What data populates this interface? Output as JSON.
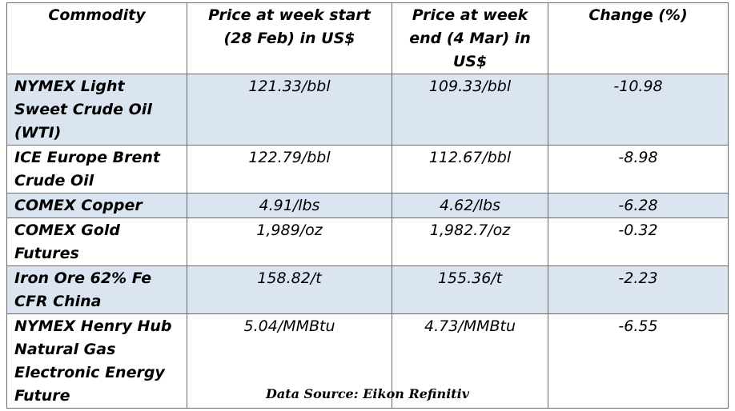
{
  "table": {
    "headers": [
      "Commodity",
      "Price at week start (28 Feb) in US$",
      "Price at week end (4 Mar) in US$",
      "Change (%)"
    ],
    "rows": [
      {
        "commodity": "NYMEX Light Sweet Crude Oil (WTI)",
        "start": "121.33/bbl",
        "end": "109.33/bbl",
        "change": "-10.98"
      },
      {
        "commodity": "ICE Europe Brent Crude Oil",
        "start": "122.79/bbl",
        "end": "112.67/bbl",
        "change": "-8.98"
      },
      {
        "commodity": "COMEX Copper",
        "start": "4.91/lbs",
        "end": "4.62/lbs",
        "change": "-6.28"
      },
      {
        "commodity": "COMEX Gold Futures",
        "start": "1,989/oz",
        "end": "1,982.7/oz",
        "change": "-0.32"
      },
      {
        "commodity": "Iron Ore 62% Fe CFR China",
        "start": "158.82/t",
        "end": "155.36/t",
        "change": "-2.23"
      },
      {
        "commodity": "NYMEX Henry Hub Natural Gas Electronic Energy Future",
        "start": "5.04/MMBtu",
        "end": "4.73/MMBtu",
        "change": "-6.55"
      }
    ]
  },
  "source_note": "Data Source: Eikon Refinitiv",
  "colors": {
    "shade": "#dbe5f1",
    "border": "#6b6b6b"
  }
}
